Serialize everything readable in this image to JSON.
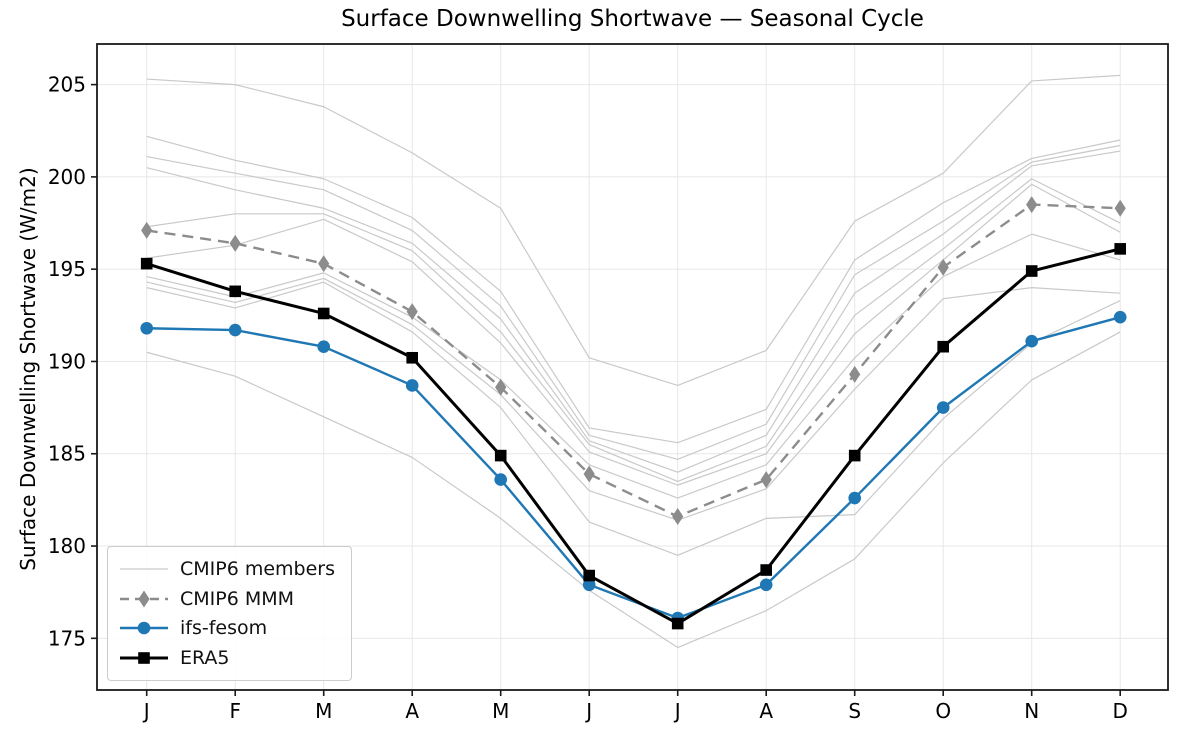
{
  "chart_data": {
    "type": "line",
    "title": "Surface Downwelling Shortwave — Seasonal Cycle",
    "xlabel": "",
    "ylabel": "Surface Downwelling Shortwave (W/m2)",
    "categories": [
      "J",
      "F",
      "M",
      "A",
      "M",
      "J",
      "J",
      "A",
      "S",
      "O",
      "N",
      "D"
    ],
    "yticks": [
      175,
      180,
      185,
      190,
      195,
      200,
      205
    ],
    "ylim": [
      172.2,
      207.2
    ],
    "grid": true,
    "grid_color": "#e7e7e7",
    "legend_position": "lower left",
    "series": [
      {
        "name": "CMIP6 members",
        "type": "ensemble",
        "color": "#c9c9c9",
        "linewidth": 1.2,
        "dash": false,
        "marker": "none",
        "members": [
          [
            205.3,
            205.0,
            203.8,
            201.3,
            198.3,
            190.2,
            188.7,
            190.6,
            197.6,
            200.2,
            205.2,
            205.5
          ],
          [
            202.2,
            200.9,
            199.9,
            197.8,
            193.8,
            186.4,
            185.6,
            187.4,
            195.5,
            198.6,
            201.0,
            202.0
          ],
          [
            201.1,
            200.2,
            199.3,
            197.1,
            193.0,
            186.0,
            184.7,
            186.6,
            194.7,
            197.6,
            200.8,
            201.7
          ],
          [
            200.5,
            199.3,
            198.3,
            196.4,
            192.3,
            185.7,
            184.0,
            186.0,
            193.7,
            196.9,
            200.6,
            201.4
          ],
          [
            197.3,
            198.0,
            198.0,
            196.0,
            191.6,
            185.5,
            183.5,
            185.4,
            192.5,
            196.1,
            199.9,
            197.5
          ],
          [
            195.6,
            196.3,
            197.7,
            195.4,
            191.0,
            185.1,
            183.3,
            185.0,
            191.5,
            195.5,
            199.6,
            197.0
          ],
          [
            194.6,
            193.5,
            194.8,
            192.4,
            189.0,
            184.4,
            182.6,
            184.4,
            190.2,
            194.6,
            196.9,
            195.5
          ],
          [
            194.3,
            193.2,
            194.5,
            192.0,
            188.2,
            183.0,
            181.4,
            183.1,
            188.5,
            193.4,
            194.0,
            193.7
          ],
          [
            194.0,
            192.9,
            194.3,
            191.6,
            187.5,
            181.3,
            179.5,
            181.5,
            181.7,
            186.9,
            191.0,
            193.3
          ],
          [
            190.5,
            189.2,
            187.0,
            184.8,
            181.5,
            177.6,
            174.5,
            176.5,
            179.3,
            184.5,
            189.0,
            191.6
          ]
        ]
      },
      {
        "name": "CMIP6 MMM",
        "type": "line",
        "color": "#8c8c8c",
        "linewidth": 2.4,
        "dash": true,
        "marker": "diamond",
        "values": [
          197.1,
          196.4,
          195.3,
          192.7,
          188.6,
          183.9,
          181.6,
          183.6,
          189.3,
          195.1,
          198.5,
          198.3
        ]
      },
      {
        "name": "ifs-fesom",
        "type": "line",
        "color": "#1f77b4",
        "linewidth": 2.4,
        "dash": false,
        "marker": "circle",
        "values": [
          191.8,
          191.7,
          190.8,
          188.7,
          183.6,
          177.9,
          176.1,
          177.9,
          182.6,
          187.5,
          191.1,
          192.4
        ]
      },
      {
        "name": "ERA5",
        "type": "line",
        "color": "#000000",
        "linewidth": 3.0,
        "dash": false,
        "marker": "square",
        "values": [
          195.3,
          193.8,
          192.6,
          190.2,
          184.9,
          178.4,
          175.8,
          178.7,
          184.9,
          190.8,
          194.9,
          196.1
        ]
      }
    ]
  }
}
